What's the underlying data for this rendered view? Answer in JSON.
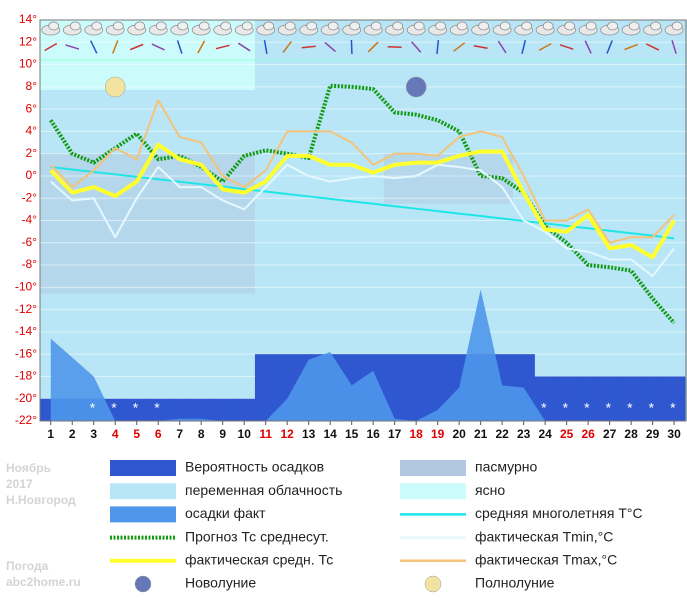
{
  "chart_data": {
    "type": "weather",
    "x": [
      1,
      2,
      3,
      4,
      5,
      6,
      7,
      8,
      9,
      10,
      11,
      12,
      13,
      14,
      15,
      16,
      17,
      18,
      19,
      20,
      21,
      22,
      23,
      24,
      25,
      26,
      27,
      28,
      29,
      30
    ],
    "xlim": [
      0.5,
      30.6
    ],
    "red_days": [
      4,
      5,
      6,
      11,
      12,
      18,
      19,
      25,
      26
    ],
    "ylim": [
      -22,
      14
    ],
    "yticks": [
      {
        "value": 14,
        "label": "14°"
      },
      {
        "value": 12,
        "label": "12°"
      },
      {
        "value": 10,
        "label": "10°"
      },
      {
        "value": 8,
        "label": "8°"
      },
      {
        "value": 6,
        "label": "6°"
      },
      {
        "value": 4,
        "label": "4°"
      },
      {
        "value": 2,
        "label": "2°"
      },
      {
        "value": 0,
        "label": "0°"
      },
      {
        "value": -2,
        "label": "-2°"
      },
      {
        "value": -4,
        "label": "-4°"
      },
      {
        "value": -6,
        "label": "-6°"
      },
      {
        "value": -8,
        "label": "-8°"
      },
      {
        "value": -10,
        "label": "-10°"
      },
      {
        "value": -12,
        "label": "-12°"
      },
      {
        "value": -14,
        "label": "-14°"
      },
      {
        "value": -16,
        "label": "-16°"
      },
      {
        "value": -18,
        "label": "-18°"
      },
      {
        "value": -20,
        "label": "-20°"
      },
      {
        "value": -22,
        "label": "-22°"
      }
    ],
    "series": [
      {
        "name": "Вероятность осадков",
        "color": "#2f58d0",
        "kind": "step",
        "values": [
          -20,
          -20,
          -20,
          -20,
          -20,
          -20,
          -20,
          -20,
          -20,
          -20,
          -16,
          -16,
          -16,
          -16,
          -16,
          -16,
          -16,
          -16,
          -16,
          -16,
          -16,
          -16,
          -16,
          -18,
          -18,
          -18,
          -18,
          -18,
          -18,
          -18
        ]
      },
      {
        "name": "осадки факт",
        "color": "#4f97ea",
        "kind": "area",
        "values": [
          -14.6,
          -16.3,
          -18,
          -22,
          -22,
          -22,
          -21.8,
          -21.8,
          -22,
          -22,
          -22,
          -20,
          -16.5,
          -15.8,
          -18.8,
          -17.5,
          -21.8,
          -22,
          -21,
          -19,
          -10.2,
          -18.8,
          -19,
          -22,
          -22,
          -22,
          -22,
          -22,
          -22,
          -22
        ]
      },
      {
        "name": "средняя многолетняя T°C",
        "color": "#1ee6e6",
        "kind": "line",
        "values": [
          0.8,
          0.58,
          0.36,
          0.14,
          -0.08,
          -0.3,
          -0.52,
          -0.74,
          -0.96,
          -1.18,
          -1.4,
          -1.62,
          -1.84,
          -2.06,
          -2.28,
          -2.5,
          -2.72,
          -2.94,
          -3.16,
          -3.38,
          -3.6,
          -3.82,
          -4.04,
          -4.26,
          -4.48,
          -4.7,
          -4.92,
          -5.14,
          -5.36,
          -5.6
        ]
      },
      {
        "name": "Прогноз Тс среднесут.",
        "color": "#129a12",
        "kind": "dotted",
        "values": [
          5,
          2,
          1.2,
          2.5,
          3.8,
          1.5,
          1.8,
          0.8,
          -0.5,
          1.8,
          2.3,
          2,
          1.6,
          8.1,
          8,
          7.8,
          5.7,
          5.5,
          5,
          4,
          0,
          -0.2,
          -1.5,
          -4.5,
          -6,
          -8,
          -8.2,
          -8.5,
          -11,
          -13.2
        ]
      },
      {
        "name": "фактическая Tmin,°C",
        "color": "#e4f8ff",
        "kind": "line",
        "values": [
          -0.5,
          -2.2,
          -2,
          -5.5,
          -2,
          0.8,
          -1,
          -1,
          -2.2,
          -3,
          -1,
          1,
          0,
          -0.5,
          -0.2,
          0,
          -0.2,
          0,
          1,
          0.8,
          0.5,
          -1,
          -4,
          -5,
          -6.5,
          -6.8,
          -7.5,
          -7.5,
          -9,
          -6.5
        ]
      },
      {
        "name": "фактическая Tmax,°C",
        "color": "#f4c37a",
        "kind": "line",
        "values": [
          1,
          -1,
          0.5,
          2.5,
          1.5,
          6.8,
          3.5,
          3,
          0,
          -1,
          0.5,
          4,
          4,
          4,
          3,
          1,
          2,
          2,
          1.8,
          3.5,
          4,
          3.5,
          0,
          -4,
          -4,
          -3,
          -6,
          -5.5,
          -5.5,
          -3.5
        ]
      },
      {
        "name": "фактическая средн. Тс",
        "color": "#ffff2e",
        "kind": "thick",
        "values": [
          0.5,
          -1.5,
          -1,
          -1.8,
          -0.5,
          2.8,
          1.5,
          1,
          -1.2,
          -1.5,
          -0.5,
          1.8,
          1.8,
          1,
          1,
          0.3,
          1,
          1.2,
          1.2,
          1.8,
          2.2,
          2.2,
          -1.5,
          -4.8,
          -5,
          -3.5,
          -6.5,
          -6.2,
          -7.3,
          -4
        ]
      }
    ],
    "cloud": [
      {
        "name": "пасмурно",
        "color": "#b2c8e0"
      },
      {
        "name": "переменная облачность",
        "color": "#b9e6f6"
      },
      {
        "name": "ясно",
        "color": "#ccfbfb"
      }
    ],
    "moon": {
      "new": {
        "name": "Новолуние",
        "day": 18,
        "color": "#6678b8"
      },
      "full": {
        "name": "Полнолуние",
        "day": 4,
        "color": "#f3e3a0"
      }
    },
    "footer": {
      "month": "Ноябрь",
      "year": "2017",
      "city": "Н.Новгород",
      "site_title": "Погода",
      "site": "abc2home.ru"
    }
  }
}
